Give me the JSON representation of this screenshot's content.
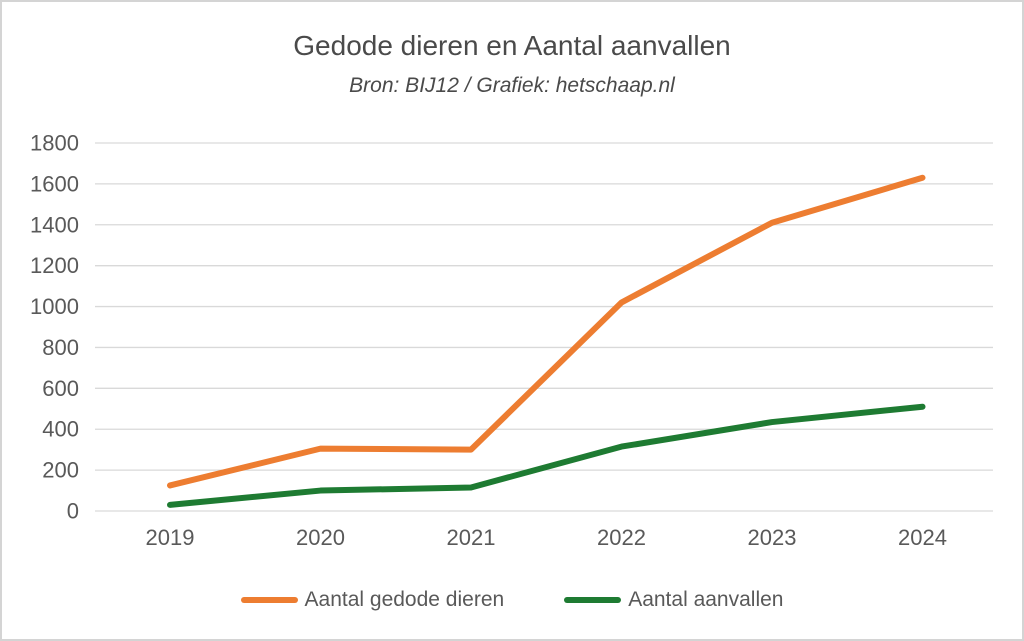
{
  "header": {
    "title": "Gedode dieren en Aantal aanvallen",
    "subtitle": "Bron: BIJ12 / Grafiek: hetschaap.nl"
  },
  "chart_data": {
    "type": "line",
    "title": "Gedode dieren en Aantal aanvallen",
    "subtitle": "Bron: BIJ12 / Grafiek: hetschaap.nl",
    "categories": [
      "2019",
      "2020",
      "2021",
      "2022",
      "2023",
      "2024"
    ],
    "series": [
      {
        "name": "Aantal gedode dieren",
        "color": "#ED7D31",
        "values": [
          125,
          305,
          300,
          1020,
          1410,
          1630
        ]
      },
      {
        "name": "Aantal aanvallen",
        "color": "#1E7B32",
        "values": [
          30,
          100,
          115,
          315,
          435,
          510
        ]
      }
    ],
    "xlabel": "",
    "ylabel": "",
    "ylim": [
      0,
      1800
    ],
    "yticks": [
      0,
      200,
      400,
      600,
      800,
      1000,
      1200,
      1400,
      1600,
      1800
    ],
    "grid": true,
    "gridline_color": "#d9d9d9",
    "tick_label_color": "#595959",
    "legend_position": "bottom"
  }
}
